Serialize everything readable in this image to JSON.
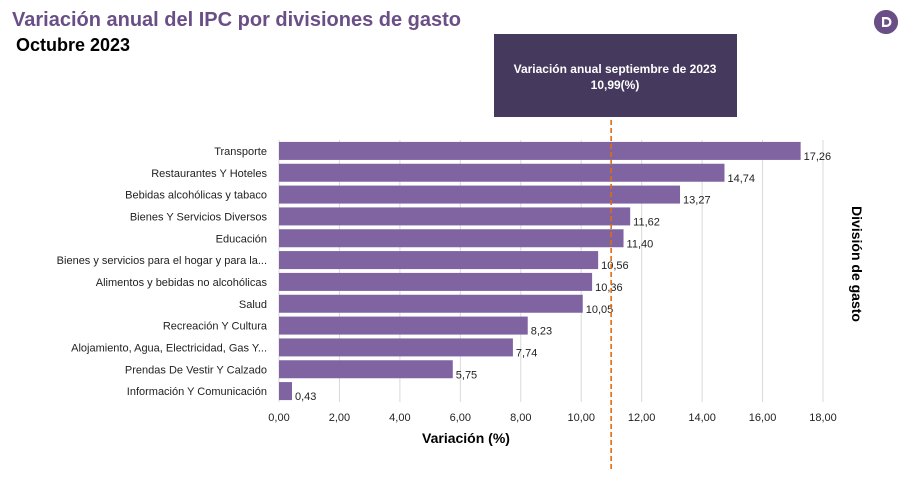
{
  "header": {
    "title": "Variación anual del IPC por divisiones de gasto",
    "subtitle": "Octubre 2023",
    "logo_icon": "d-logo-icon"
  },
  "chart_data": {
    "type": "bar",
    "orientation": "horizontal",
    "categories": [
      "Transporte",
      "Restaurantes Y Hoteles",
      "Bebidas alcohólicas y tabaco",
      "Bienes Y Servicios Diversos",
      "Educación",
      "Bienes y servicios para el hogar y para la...",
      "Alimentos y bebidas no alcohólicas",
      "Salud",
      "Recreación Y Cultura",
      "Alojamiento, Agua, Electricidad, Gas Y...",
      "Prendas De Vestir Y Calzado",
      "Información Y Comunicación"
    ],
    "values": [
      17.26,
      14.74,
      13.27,
      11.62,
      11.4,
      10.56,
      10.36,
      10.05,
      8.23,
      7.74,
      5.75,
      0.43
    ],
    "value_labels": [
      "17,26",
      "14,74",
      "13,27",
      "11,62",
      "11,40",
      "10,56",
      "10,36",
      "10,05",
      "8,23",
      "7,74",
      "5,75",
      "0,43"
    ],
    "xlim": [
      0,
      18
    ],
    "x_ticks": [
      0,
      2,
      4,
      6,
      8,
      10,
      12,
      14,
      16,
      18
    ],
    "x_tick_labels": [
      "0,00",
      "2,00",
      "4,00",
      "6,00",
      "8,00",
      "10,00",
      "12,00",
      "14,00",
      "16,00",
      "18,00"
    ],
    "xlabel": "Variación (%)",
    "ylabel": "División de gasto",
    "grid": "vertical",
    "bar_color": "#8064a2",
    "reference_line": {
      "value": 10.99,
      "color": "#e26b0a",
      "style": "dashed",
      "label_line1": "Variación anual septiembre de 2023",
      "label_line2": "10,99(%)",
      "box_color": "#453a5e"
    }
  }
}
